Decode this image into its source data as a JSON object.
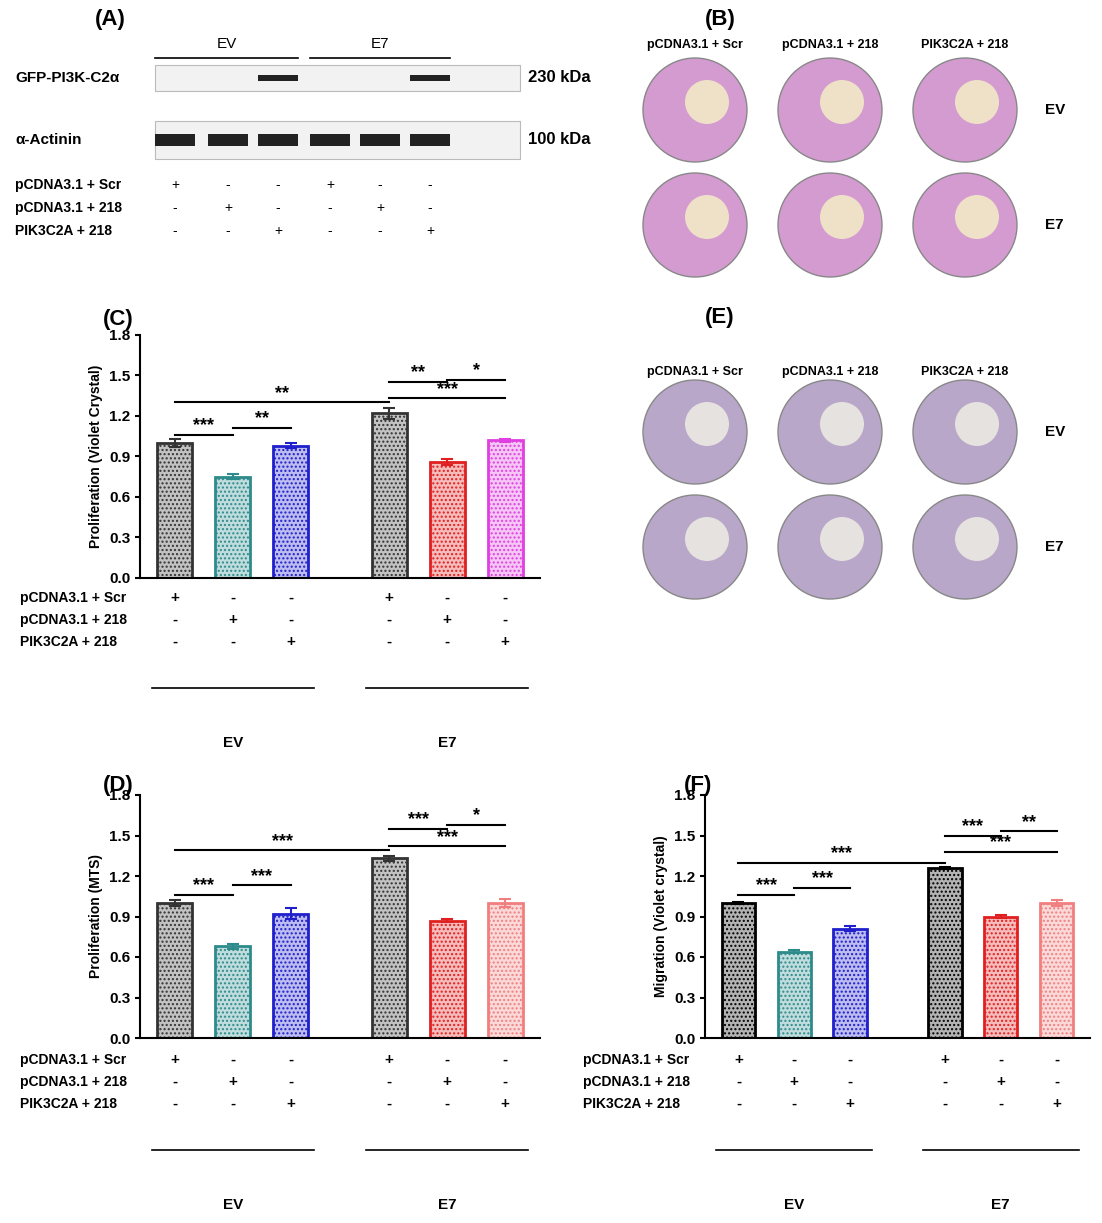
{
  "panels": {
    "A": {
      "label": "(A)",
      "groups": [
        {
          "name": "EV",
          "lanes": [
            0,
            1,
            2
          ]
        },
        {
          "name": "E7",
          "lanes": [
            3,
            4,
            5
          ]
        }
      ],
      "rows": [
        {
          "name": "GFP-PI3K-C2α",
          "size": "230 kDa",
          "bands": [
            false,
            false,
            true,
            false,
            false,
            true
          ]
        },
        {
          "name": "α-Actinin",
          "size": "100 kDa",
          "bands": [
            true,
            true,
            true,
            true,
            true,
            true
          ]
        }
      ],
      "conditions": [
        {
          "name": "pCDNA3.1 + Scr",
          "marks": [
            "+",
            "-",
            "-",
            "+",
            "-",
            "-"
          ]
        },
        {
          "name": "pCDNA3.1 + 218",
          "marks": [
            "-",
            "+",
            "-",
            "-",
            "+",
            "-"
          ]
        },
        {
          "name": "PIK3C2A + 218",
          "marks": [
            "-",
            "-",
            "+",
            "-",
            "-",
            "+"
          ]
        }
      ]
    },
    "B": {
      "label": "(B)",
      "columns": [
        "pCDNA3.1 + Scr",
        "pCDNA3.1 + 218",
        "PIK3C2A + 218"
      ],
      "rows": [
        "EV",
        "E7"
      ]
    },
    "E": {
      "label": "(E)",
      "columns": [
        "pCDNA3.1 + Scr",
        "pCDNA3.1 + 218",
        "PIK3C2A + 218"
      ],
      "rows": [
        "EV",
        "E7"
      ]
    }
  },
  "chart_data": [
    {
      "type": "bar",
      "title": "(C)",
      "y_label": "Proliferation (Violet Crystal)",
      "ylim": [
        0,
        1.8
      ],
      "yticks": [
        {
          "value": 0,
          "label": "0.0"
        },
        0.3,
        0.6,
        0.9,
        1.2,
        1.5,
        1.8
      ],
      "values": [
        1.0,
        0.75,
        0.98,
        1.22,
        0.86,
        1.02
      ],
      "errors": [
        0.03,
        0.02,
        0.02,
        0.04,
        0.02,
        0.01
      ],
      "colors": [
        "#333333",
        "#2e8b8b",
        "#1f1fcc",
        "#333333",
        "#e02020",
        "#e040e0"
      ],
      "conditions": [
        {
          "name": "pCDNA3.1 + Scr",
          "marks": [
            "+",
            "-",
            "-",
            "+",
            "-",
            "-"
          ]
        },
        {
          "name": "pCDNA3.1 + 218",
          "marks": [
            "-",
            "+",
            "-",
            "-",
            "+",
            "-"
          ]
        },
        {
          "name": "PIK3C2A + 218",
          "marks": [
            "-",
            "-",
            "+",
            "-",
            "-",
            "+"
          ]
        }
      ],
      "groups": [
        {
          "name": "EV",
          "lanes": [
            0,
            1,
            2
          ]
        },
        {
          "name": "E7",
          "lanes": [
            3,
            4,
            5
          ]
        }
      ],
      "significance": [
        {
          "from": 0,
          "to": 1,
          "y": 1.06,
          "label": "***"
        },
        {
          "from": 1,
          "to": 2,
          "y": 1.11,
          "label": "**"
        },
        {
          "from": 0,
          "to": 3,
          "y": 1.3,
          "label": "**"
        },
        {
          "from": 3,
          "to": 4,
          "y": 1.45,
          "label": "**"
        },
        {
          "from": 4,
          "to": 5,
          "y": 1.47,
          "label": "*"
        },
        {
          "from": 3,
          "to": 5,
          "y": 1.33,
          "label": "***"
        }
      ]
    },
    {
      "type": "bar",
      "title": "(D)",
      "y_label": "Proliferation (MTS)",
      "ylim": [
        0,
        1.8
      ],
      "yticks": [
        {
          "value": 0,
          "label": "0.0"
        },
        0.3,
        0.6,
        0.9,
        1.2,
        1.5,
        1.8
      ],
      "values": [
        1.0,
        0.68,
        0.92,
        1.33,
        0.87,
        1.0
      ],
      "errors": [
        0.02,
        0.02,
        0.04,
        0.02,
        0.01,
        0.03
      ],
      "colors": [
        "#333333",
        "#2e8b8b",
        "#1f1fcc",
        "#333333",
        "#e02020",
        "#f08080"
      ],
      "conditions": [
        {
          "name": "pCDNA3.1 + Scr",
          "marks": [
            "+",
            "-",
            "-",
            "+",
            "-",
            "-"
          ]
        },
        {
          "name": "pCDNA3.1 + 218",
          "marks": [
            "-",
            "+",
            "-",
            "-",
            "+",
            "-"
          ]
        },
        {
          "name": "PIK3C2A + 218",
          "marks": [
            "-",
            "-",
            "+",
            "-",
            "-",
            "+"
          ]
        }
      ],
      "groups": [
        {
          "name": "EV",
          "lanes": [
            0,
            1,
            2
          ]
        },
        {
          "name": "E7",
          "lanes": [
            3,
            4,
            5
          ]
        }
      ],
      "significance": [
        {
          "from": 0,
          "to": 1,
          "y": 1.06,
          "label": "***"
        },
        {
          "from": 1,
          "to": 2,
          "y": 1.13,
          "label": "***"
        },
        {
          "from": 0,
          "to": 3,
          "y": 1.39,
          "label": "***"
        },
        {
          "from": 3,
          "to": 4,
          "y": 1.55,
          "label": "***"
        },
        {
          "from": 4,
          "to": 5,
          "y": 1.58,
          "label": "*"
        },
        {
          "from": 3,
          "to": 5,
          "y": 1.42,
          "label": "***"
        }
      ]
    },
    {
      "type": "bar",
      "title": "(F)",
      "y_label": "Migration (Violet crystal)",
      "ylim": [
        0,
        1.8
      ],
      "yticks": [
        {
          "value": 0,
          "label": "0.0"
        },
        0.3,
        0.6,
        0.9,
        1.2,
        1.5,
        1.8
      ],
      "values": [
        1.0,
        0.64,
        0.81,
        1.26,
        0.9,
        1.0
      ],
      "errors": [
        0.01,
        0.01,
        0.02,
        0.01,
        0.01,
        0.02
      ],
      "colors": [
        "#000000",
        "#2e8b8b",
        "#1f1fcc",
        "#000000",
        "#e02020",
        "#f08080"
      ],
      "conditions": [
        {
          "name": "pCDNA3.1 + Scr",
          "marks": [
            "+",
            "-",
            "-",
            "+",
            "-",
            "-"
          ]
        },
        {
          "name": "pCDNA3.1 + 218",
          "marks": [
            "-",
            "+",
            "-",
            "-",
            "+",
            "-"
          ]
        },
        {
          "name": "PIK3C2A + 218",
          "marks": [
            "-",
            "-",
            "+",
            "-",
            "-",
            "+"
          ]
        }
      ],
      "groups": [
        {
          "name": "EV",
          "lanes": [
            0,
            1,
            2
          ]
        },
        {
          "name": "E7",
          "lanes": [
            3,
            4,
            5
          ]
        }
      ],
      "significance": [
        {
          "from": 0,
          "to": 1,
          "y": 1.06,
          "label": "***"
        },
        {
          "from": 1,
          "to": 2,
          "y": 1.11,
          "label": "***"
        },
        {
          "from": 0,
          "to": 3,
          "y": 1.3,
          "label": "***"
        },
        {
          "from": 3,
          "to": 4,
          "y": 1.5,
          "label": "***"
        },
        {
          "from": 4,
          "to": 5,
          "y": 1.53,
          "label": "**"
        },
        {
          "from": 3,
          "to": 5,
          "y": 1.38,
          "label": "***"
        }
      ]
    }
  ]
}
